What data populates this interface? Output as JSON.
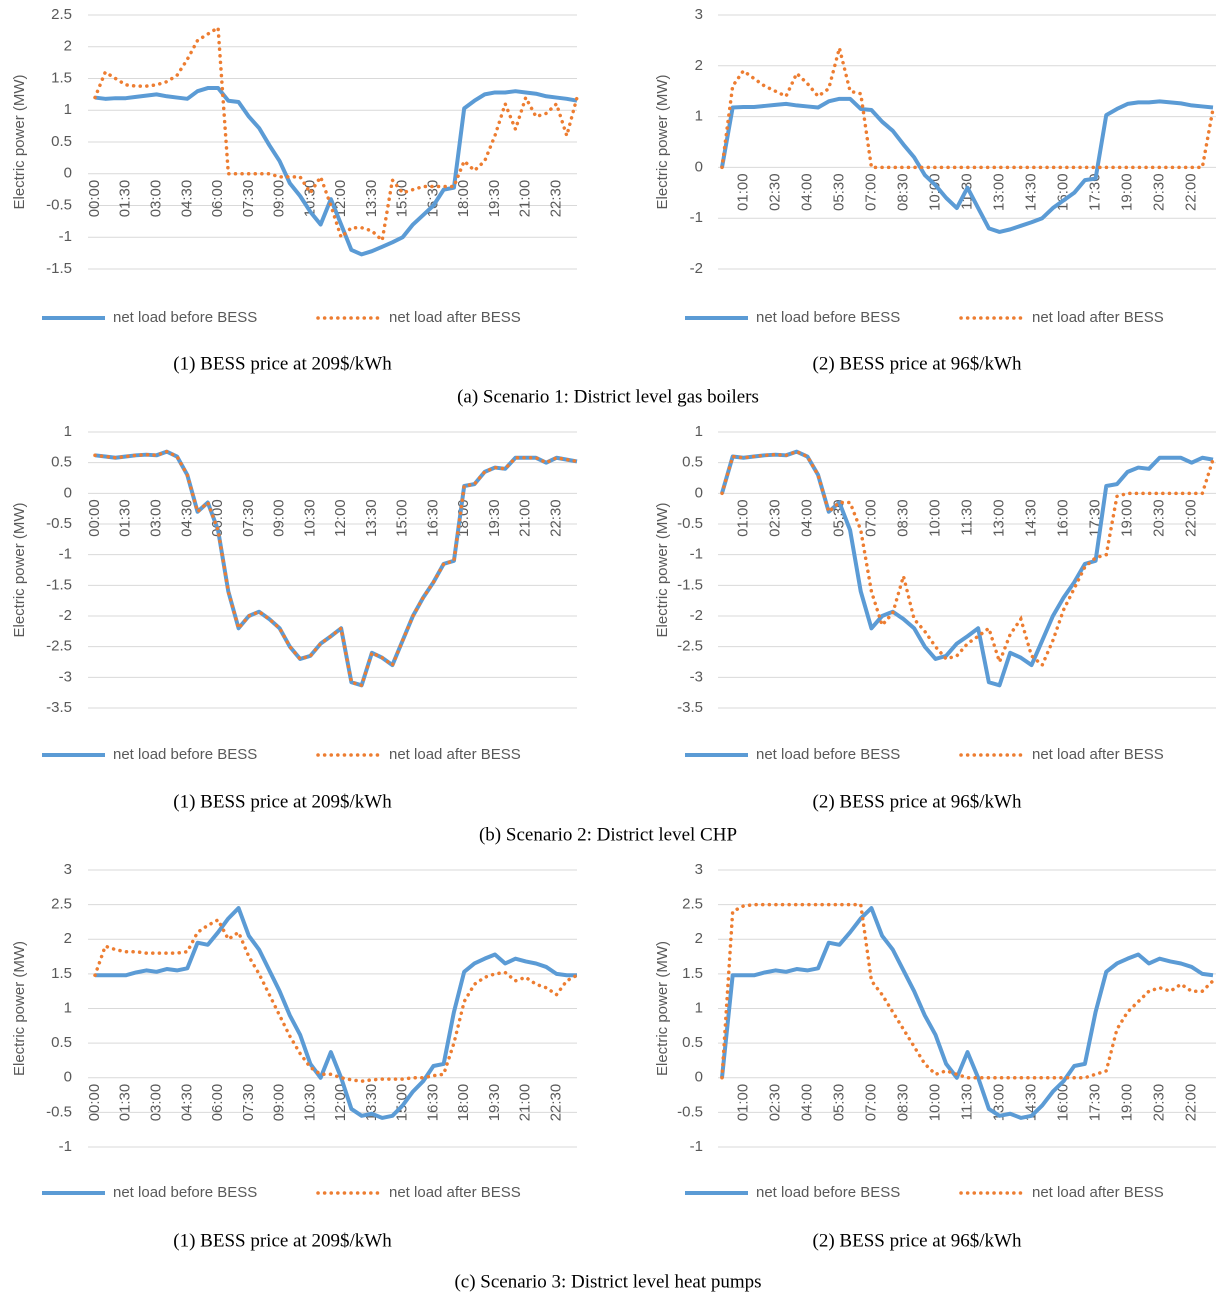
{
  "figure_captions": [
    "(a) Scenario 1: District level gas boilers",
    "(b) Scenario 2: District level CHP",
    "(c) Scenario 3: District level heat pumps"
  ],
  "chart_data": [
    {
      "type": "line",
      "caption": "(1) BESS price at 209$/kWh",
      "y_label": "Electric power (MW)",
      "grid": true,
      "categories": [
        "00:00",
        null,
        null,
        "01:30",
        null,
        null,
        "03:00",
        null,
        null,
        "04:30",
        null,
        null,
        "06:00",
        null,
        null,
        "07:30",
        null,
        null,
        "09:00",
        null,
        null,
        "10:30",
        null,
        null,
        "12:00",
        null,
        null,
        "13:30",
        null,
        null,
        "15:00",
        null,
        null,
        "16:30",
        null,
        null,
        "18:00",
        null,
        null,
        "19:30",
        null,
        null,
        "21:00",
        null,
        null,
        "22:30",
        null,
        null
      ],
      "ylim": [
        -1.5,
        2.5
      ],
      "yticks": [
        -1.5,
        -1,
        -0.5,
        0,
        0.5,
        1,
        1.5,
        2,
        2.5
      ],
      "series": [
        {
          "name": "net load before BESS",
          "color": "#5b9bd5",
          "line_style": "solid",
          "values": [
            1.2,
            1.18,
            1.19,
            1.19,
            1.21,
            1.23,
            1.25,
            1.22,
            1.2,
            1.18,
            1.3,
            1.35,
            1.35,
            1.15,
            1.13,
            0.9,
            0.72,
            0.45,
            0.2,
            -0.15,
            -0.35,
            -0.6,
            -0.8,
            -0.4,
            -0.8,
            -1.2,
            -1.27,
            -1.22,
            -1.15,
            -1.08,
            -1.0,
            -0.8,
            -0.65,
            -0.5,
            -0.25,
            -0.22,
            1.03,
            1.15,
            1.25,
            1.28,
            1.28,
            1.3,
            1.28,
            1.26,
            1.22,
            1.2,
            1.18,
            1.15
          ]
        },
        {
          "name": "net load after BESS",
          "color": "#ed7d31",
          "line_style": "dotted",
          "values": [
            1.2,
            1.6,
            1.5,
            1.4,
            1.38,
            1.38,
            1.4,
            1.45,
            1.55,
            1.8,
            2.1,
            2.2,
            2.3,
            0,
            0,
            0,
            0,
            0,
            -0.05,
            -0.05,
            -0.05,
            -0.3,
            -0.05,
            -0.5,
            -1.0,
            -0.85,
            -0.85,
            -0.9,
            -1.05,
            -0.1,
            -0.3,
            -0.25,
            -0.2,
            -0.2,
            -0.2,
            -0.2,
            0.2,
            0.05,
            0.2,
            0.6,
            1.1,
            0.7,
            1.2,
            0.9,
            0.95,
            1.1,
            0.6,
            1.2
          ]
        }
      ]
    },
    {
      "type": "line",
      "caption": "(2) BESS price at 96$/kWh",
      "y_label": "Electric power (MW)",
      "grid": true,
      "categories": [
        null,
        null,
        "01:00",
        null,
        null,
        "02:30",
        null,
        null,
        "04:00",
        null,
        null,
        "05:30",
        null,
        null,
        "07:00",
        null,
        null,
        "08:30",
        null,
        null,
        "10:00",
        null,
        null,
        "11:30",
        null,
        null,
        "13:00",
        null,
        null,
        "14:30",
        null,
        null,
        "16:00",
        null,
        null,
        "17:30",
        null,
        null,
        "19:00",
        null,
        null,
        "20:30",
        null,
        null,
        "22:00",
        null,
        null
      ],
      "ylim": [
        -2,
        3
      ],
      "yticks": [
        -2,
        -1,
        0,
        1,
        2,
        3
      ],
      "series": [
        {
          "name": "net load before BESS",
          "color": "#5b9bd5",
          "line_style": "solid",
          "values": [
            0,
            1.18,
            1.19,
            1.19,
            1.21,
            1.23,
            1.25,
            1.22,
            1.2,
            1.18,
            1.3,
            1.35,
            1.35,
            1.15,
            1.13,
            0.9,
            0.72,
            0.45,
            0.2,
            -0.15,
            -0.35,
            -0.6,
            -0.8,
            -0.4,
            -0.8,
            -1.2,
            -1.27,
            -1.22,
            -1.15,
            -1.08,
            -1.0,
            -0.8,
            -0.65,
            -0.5,
            -0.25,
            -0.22,
            1.03,
            1.15,
            1.25,
            1.28,
            1.28,
            1.3,
            1.28,
            1.26,
            1.22,
            1.2,
            1.18
          ]
        },
        {
          "name": "net load after BESS",
          "color": "#ed7d31",
          "line_style": "dotted",
          "values": [
            0,
            1.6,
            1.9,
            1.75,
            1.6,
            1.5,
            1.4,
            1.85,
            1.65,
            1.4,
            1.55,
            2.35,
            1.5,
            1.45,
            0,
            0,
            0,
            0,
            0,
            0,
            0,
            0,
            0,
            0,
            0,
            0,
            0,
            0,
            0,
            0,
            0,
            0,
            0,
            0,
            0,
            0,
            0,
            0,
            0,
            0,
            0,
            0,
            0,
            0,
            0,
            0,
            1.15
          ]
        }
      ]
    },
    {
      "type": "line",
      "caption": "(1) BESS price at 209$/kWh",
      "y_label": "Electric power (MW)",
      "grid": true,
      "categories": [
        "00:00",
        null,
        null,
        "01:30",
        null,
        null,
        "03:00",
        null,
        null,
        "04:30",
        null,
        null,
        "06:00",
        null,
        null,
        "07:30",
        null,
        null,
        "09:00",
        null,
        null,
        "10:30",
        null,
        null,
        "12:00",
        null,
        null,
        "13:30",
        null,
        null,
        "15:00",
        null,
        null,
        "16:30",
        null,
        null,
        "18:00",
        null,
        null,
        "19:30",
        null,
        null,
        "21:00",
        null,
        null,
        "22:30",
        null,
        null
      ],
      "ylim": [
        -3.5,
        1
      ],
      "yticks": [
        -3.5,
        -3,
        -2.5,
        -2,
        -1.5,
        -1,
        -0.5,
        0,
        0.5,
        1
      ],
      "series": [
        {
          "name": "net load before BESS",
          "color": "#5b9bd5",
          "line_style": "solid",
          "values": [
            0.62,
            0.6,
            0.58,
            0.6,
            0.62,
            0.63,
            0.62,
            0.68,
            0.6,
            0.3,
            -0.3,
            -0.15,
            -0.6,
            -1.6,
            -2.2,
            -2.0,
            -1.93,
            -2.05,
            -2.2,
            -2.5,
            -2.7,
            -2.65,
            -2.45,
            -2.33,
            -2.2,
            -3.08,
            -3.13,
            -2.6,
            -2.68,
            -2.8,
            -2.4,
            -2.0,
            -1.7,
            -1.45,
            -1.15,
            -1.1,
            0.12,
            0.15,
            0.35,
            0.42,
            0.4,
            0.58,
            0.58,
            0.58,
            0.5,
            0.58,
            0.55,
            0.52
          ]
        },
        {
          "name": "net load after BESS",
          "color": "#ed7d31",
          "line_style": "dotted",
          "values": [
            0.62,
            0.6,
            0.58,
            0.6,
            0.62,
            0.63,
            0.62,
            0.68,
            0.6,
            0.3,
            -0.3,
            -0.15,
            -0.6,
            -1.6,
            -2.2,
            -2.0,
            -1.93,
            -2.05,
            -2.2,
            -2.5,
            -2.7,
            -2.65,
            -2.45,
            -2.33,
            -2.2,
            -3.08,
            -3.13,
            -2.6,
            -2.68,
            -2.8,
            -2.4,
            -2.0,
            -1.7,
            -1.45,
            -1.15,
            -1.1,
            0.12,
            0.15,
            0.35,
            0.42,
            0.4,
            0.58,
            0.58,
            0.58,
            0.5,
            0.58,
            0.55,
            0.52
          ]
        }
      ]
    },
    {
      "type": "line",
      "caption": "(2) BESS price at 96$/kWh",
      "y_label": "Electric power (MW)",
      "grid": true,
      "categories": [
        null,
        null,
        "01:00",
        null,
        null,
        "02:30",
        null,
        null,
        "04:00",
        null,
        null,
        "05:30",
        null,
        null,
        "07:00",
        null,
        null,
        "08:30",
        null,
        null,
        "10:00",
        null,
        null,
        "11:30",
        null,
        null,
        "13:00",
        null,
        null,
        "14:30",
        null,
        null,
        "16:00",
        null,
        null,
        "17:30",
        null,
        null,
        "19:00",
        null,
        null,
        "20:30",
        null,
        null,
        "22:00",
        null,
        null
      ],
      "ylim": [
        -3.5,
        1
      ],
      "yticks": [
        -3.5,
        -3,
        -2.5,
        -2,
        -1.5,
        -1,
        -0.5,
        0,
        0.5,
        1
      ],
      "series": [
        {
          "name": "net load before BESS",
          "color": "#5b9bd5",
          "line_style": "solid",
          "values": [
            0,
            0.6,
            0.58,
            0.6,
            0.62,
            0.63,
            0.62,
            0.68,
            0.6,
            0.3,
            -0.3,
            -0.15,
            -0.6,
            -1.6,
            -2.2,
            -2.0,
            -1.93,
            -2.05,
            -2.2,
            -2.5,
            -2.7,
            -2.65,
            -2.45,
            -2.33,
            -2.2,
            -3.08,
            -3.13,
            -2.6,
            -2.68,
            -2.8,
            -2.4,
            -2.0,
            -1.7,
            -1.45,
            -1.15,
            -1.1,
            0.12,
            0.15,
            0.35,
            0.42,
            0.4,
            0.58,
            0.58,
            0.58,
            0.5,
            0.58,
            0.55
          ]
        },
        {
          "name": "net load after BESS",
          "color": "#ed7d31",
          "line_style": "dotted",
          "values": [
            0,
            0.6,
            0.58,
            0.6,
            0.62,
            0.63,
            0.62,
            0.68,
            0.6,
            0.3,
            -0.3,
            -0.15,
            -0.15,
            -0.6,
            -1.6,
            -2.15,
            -1.95,
            -1.35,
            -2.05,
            -2.25,
            -2.5,
            -2.7,
            -2.65,
            -2.45,
            -2.33,
            -2.2,
            -2.75,
            -2.3,
            -2.05,
            -2.65,
            -2.8,
            -2.4,
            -1.9,
            -1.55,
            -1.2,
            -1.05,
            -1.0,
            -0.05,
            0,
            0,
            0,
            0,
            0,
            0,
            0,
            0,
            0.55
          ]
        }
      ]
    },
    {
      "type": "line",
      "caption": "(1) BESS price at 209$/kWh",
      "y_label": "Electric power (MW)",
      "grid": true,
      "categories": [
        "00:00",
        null,
        null,
        "01:30",
        null,
        null,
        "03:00",
        null,
        null,
        "04:30",
        null,
        null,
        "06:00",
        null,
        null,
        "07:30",
        null,
        null,
        "09:00",
        null,
        null,
        "10:30",
        null,
        null,
        "12:00",
        null,
        null,
        "13:30",
        null,
        null,
        "15:00",
        null,
        null,
        "16:30",
        null,
        null,
        "18:00",
        null,
        null,
        "19:30",
        null,
        null,
        "21:00",
        null,
        null,
        "22:30",
        null,
        null
      ],
      "ylim": [
        -1,
        3
      ],
      "yticks": [
        -1,
        -0.5,
        0,
        0.5,
        1,
        1.5,
        2,
        2.5,
        3
      ],
      "series": [
        {
          "name": "net load before BESS",
          "color": "#5b9bd5",
          "line_style": "solid",
          "values": [
            1.48,
            1.48,
            1.48,
            1.48,
            1.52,
            1.55,
            1.53,
            1.57,
            1.55,
            1.58,
            1.95,
            1.92,
            2.1,
            2.3,
            2.45,
            2.05,
            1.85,
            1.55,
            1.25,
            0.9,
            0.62,
            0.2,
            0,
            0.37,
            0,
            -0.45,
            -0.55,
            -0.52,
            -0.58,
            -0.55,
            -0.4,
            -0.2,
            -0.05,
            0.17,
            0.2,
            0.95,
            1.53,
            1.65,
            1.72,
            1.78,
            1.65,
            1.72,
            1.68,
            1.65,
            1.6,
            1.5,
            1.48,
            1.48
          ]
        },
        {
          "name": "net load after BESS",
          "color": "#ed7d31",
          "line_style": "dotted",
          "values": [
            1.48,
            1.9,
            1.85,
            1.82,
            1.82,
            1.8,
            1.8,
            1.8,
            1.8,
            1.82,
            2.1,
            2.2,
            2.28,
            2.0,
            2.1,
            1.75,
            1.5,
            1.2,
            0.9,
            0.6,
            0.35,
            0.15,
            0.05,
            0.05,
            0,
            -0.03,
            -0.05,
            -0.03,
            -0.02,
            -0.02,
            -0.02,
            0,
            0,
            0.03,
            0.05,
            0.5,
            1.1,
            1.35,
            1.45,
            1.5,
            1.52,
            1.4,
            1.45,
            1.35,
            1.3,
            1.2,
            1.4,
            1.48
          ]
        }
      ]
    },
    {
      "type": "line",
      "caption": "(2) BESS price at 96$/kWh",
      "y_label": "Electric power (MW)",
      "grid": true,
      "categories": [
        null,
        null,
        "01:00",
        null,
        null,
        "02:30",
        null,
        null,
        "04:00",
        null,
        null,
        "05:30",
        null,
        null,
        "07:00",
        null,
        null,
        "08:30",
        null,
        null,
        "10:00",
        null,
        null,
        "11:30",
        null,
        null,
        "13:00",
        null,
        null,
        "14:30",
        null,
        null,
        "16:00",
        null,
        null,
        "17:30",
        null,
        null,
        "19:00",
        null,
        null,
        "20:30",
        null,
        null,
        "22:00",
        null,
        null
      ],
      "ylim": [
        -1,
        3
      ],
      "yticks": [
        -1,
        -0.5,
        0,
        0.5,
        1,
        1.5,
        2,
        2.5,
        3
      ],
      "series": [
        {
          "name": "net load before BESS",
          "color": "#5b9bd5",
          "line_style": "solid",
          "values": [
            0,
            1.48,
            1.48,
            1.48,
            1.52,
            1.55,
            1.53,
            1.57,
            1.55,
            1.58,
            1.95,
            1.92,
            2.1,
            2.3,
            2.45,
            2.05,
            1.85,
            1.55,
            1.25,
            0.9,
            0.62,
            0.2,
            0,
            0.37,
            0,
            -0.45,
            -0.55,
            -0.52,
            -0.58,
            -0.55,
            -0.4,
            -0.2,
            -0.05,
            0.17,
            0.2,
            0.95,
            1.53,
            1.65,
            1.72,
            1.78,
            1.65,
            1.72,
            1.68,
            1.65,
            1.6,
            1.5,
            1.48
          ]
        },
        {
          "name": "net load after BESS",
          "color": "#ed7d31",
          "line_style": "dotted",
          "values": [
            0,
            2.4,
            2.48,
            2.5,
            2.5,
            2.5,
            2.5,
            2.5,
            2.5,
            2.5,
            2.5,
            2.5,
            2.5,
            2.5,
            1.4,
            1.2,
            0.95,
            0.7,
            0.45,
            0.2,
            0.05,
            0.1,
            0.05,
            0,
            0,
            0,
            0,
            0,
            0,
            0,
            0,
            0,
            0,
            0,
            0,
            0.05,
            0.1,
            0.7,
            0.95,
            1.1,
            1.25,
            1.3,
            1.25,
            1.35,
            1.25,
            1.25,
            1.4
          ]
        }
      ]
    }
  ]
}
